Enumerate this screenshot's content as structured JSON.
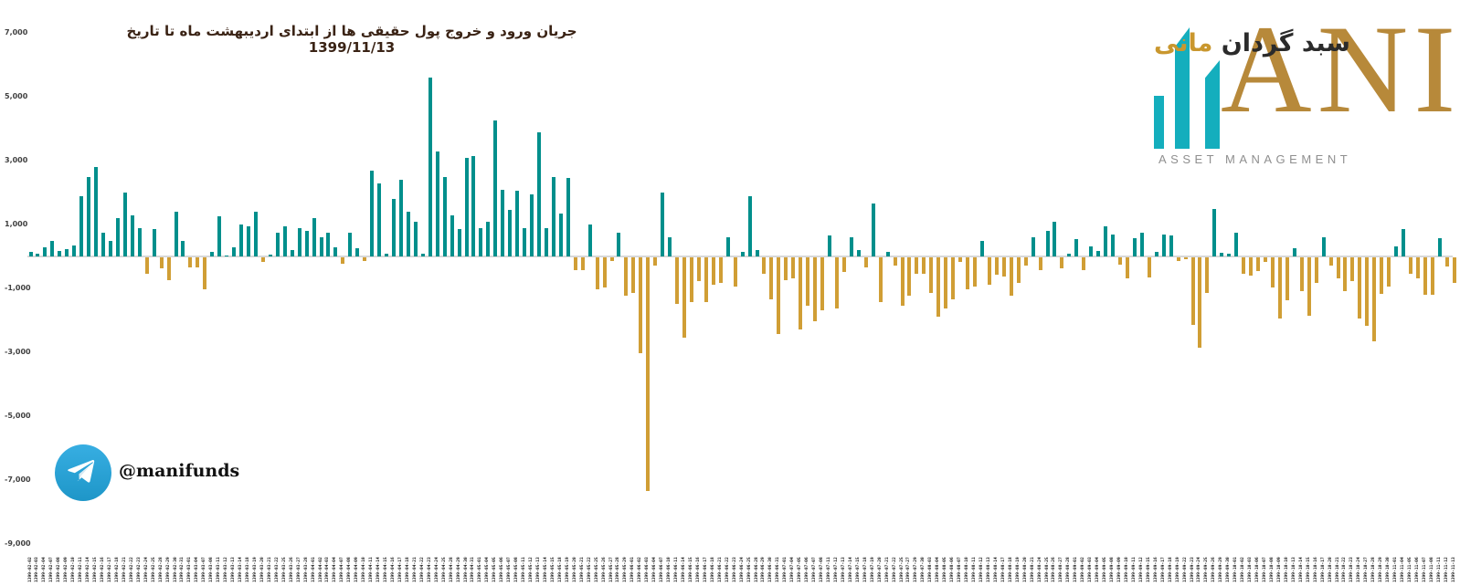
{
  "title": "جریان ورود و خروج پول حقیقی ها از ابتدای اردیبهشت ماه تا تاریخ 1399/11/13",
  "logo": {
    "brand_fa_dark": "سبد گردان",
    "brand_fa_gold": "مانی",
    "brand_en": "ANI",
    "subtitle": "ASSET MANAGEMENT",
    "bars_color": "#14aebd",
    "gold_color": "#b7893a"
  },
  "telegram": {
    "handle": "@manifunds"
  },
  "chart_data": {
    "type": "bar",
    "title": "جریان ورود و خروج پول حقیقی ها از ابتدای اردیبهشت ماه تا تاریخ 1399/11/13",
    "xlabel": "",
    "ylabel": "",
    "ylim": [
      -9000,
      7000
    ],
    "grid": false,
    "legend_position": "none",
    "positive_color": "#008f8c",
    "negative_color": "#d09e35",
    "y_ticks": [
      "7,000",
      "5,000",
      "3,000",
      "1,000",
      "-1,000",
      "-3,000",
      "-5,000",
      "-7,000",
      "-9,000"
    ],
    "y_tick_values": [
      7000,
      5000,
      3000,
      1000,
      -1000,
      -3000,
      -5000,
      -7000,
      -9000
    ],
    "x": [
      "1399-02-02",
      "1399-02-03",
      "1399-02-04",
      "1399-02-07",
      "1399-02-08",
      "1399-02-09",
      "1399-02-10",
      "1399-02-11",
      "1399-02-14",
      "1399-02-15",
      "1399-02-16",
      "1399-02-17",
      "1399-02-18",
      "1399-02-21",
      "1399-02-22",
      "1399-02-23",
      "1399-02-24",
      "1399-02-25",
      "1399-02-28",
      "1399-02-29",
      "1399-02-30",
      "1399-02-31",
      "1399-03-01",
      "1399-03-04",
      "1399-03-07",
      "1399-03-08",
      "1399-03-11",
      "1399-03-12",
      "1399-03-13",
      "1399-03-14",
      "1399-03-18",
      "1399-03-19",
      "1399-03-20",
      "1399-03-21",
      "1399-03-22",
      "1399-03-25",
      "1399-03-26",
      "1399-03-27",
      "1399-03-28",
      "1399-04-01",
      "1399-04-02",
      "1399-04-03",
      "1399-04-04",
      "1399-04-07",
      "1399-04-08",
      "1399-04-09",
      "1399-04-10",
      "1399-04-11",
      "1399-04-14",
      "1399-04-15",
      "1399-04-16",
      "1399-04-17",
      "1399-04-18",
      "1399-04-21",
      "1399-04-22",
      "1399-04-23",
      "1399-04-24",
      "1399-04-25",
      "1399-04-28",
      "1399-04-29",
      "1399-04-30",
      "1399-04-31",
      "1399-05-01",
      "1399-05-04",
      "1399-05-05",
      "1399-05-06",
      "1399-05-07",
      "1399-05-08",
      "1399-05-11",
      "1399-05-12",
      "1399-05-13",
      "1399-05-14",
      "1399-05-15",
      "1399-05-18",
      "1399-05-19",
      "1399-05-20",
      "1399-05-21",
      "1399-05-22",
      "1399-05-25",
      "1399-05-26",
      "1399-05-27",
      "1399-05-28",
      "1399-05-29",
      "1399-06-01",
      "1399-06-02",
      "1399-06-03",
      "1399-06-04",
      "1399-06-07",
      "1399-06-10",
      "1399-06-11",
      "1399-06-14",
      "1399-06-15",
      "1399-06-16",
      "1399-06-17",
      "1399-06-18",
      "1399-06-21",
      "1399-06-22",
      "1399-06-23",
      "1399-06-24",
      "1399-06-25",
      "1399-06-28",
      "1399-06-29",
      "1399-06-30",
      "1399-06-31",
      "1399-07-01",
      "1399-07-04",
      "1399-07-05",
      "1399-07-06",
      "1399-07-07",
      "1399-07-08",
      "1399-07-11",
      "1399-07-12",
      "1399-07-13",
      "1399-07-14",
      "1399-07-15",
      "1399-07-18",
      "1399-07-19",
      "1399-07-20",
      "1399-07-21",
      "1399-07-22",
      "1399-07-25",
      "1399-07-27",
      "1399-07-29",
      "1399-07-30",
      "1399-08-03",
      "1399-08-04",
      "1399-08-05",
      "1399-08-06",
      "1399-08-07",
      "1399-08-10",
      "1399-08-11",
      "1399-08-12",
      "1399-08-13",
      "1399-08-14",
      "1399-08-17",
      "1399-08-18",
      "1399-08-19",
      "1399-08-20",
      "1399-08-21",
      "1399-08-24",
      "1399-08-25",
      "1399-08-26",
      "1399-08-27",
      "1399-08-28",
      "1399-09-01",
      "1399-09-02",
      "1399-09-03",
      "1399-09-04",
      "1399-09-05",
      "1399-09-08",
      "1399-09-09",
      "1399-09-10",
      "1399-09-11",
      "1399-09-12",
      "1399-09-15",
      "1399-09-16",
      "1399-09-17",
      "1399-09-18",
      "1399-09-19",
      "1399-09-22",
      "1399-09-23",
      "1399-09-24",
      "1399-09-25",
      "1399-09-26",
      "1399-09-29",
      "1399-09-30",
      "1399-10-01",
      "1399-10-02",
      "1399-10-03",
      "1399-10-06",
      "1399-10-07",
      "1399-10-08",
      "1399-10-09",
      "1399-10-10",
      "1399-10-13",
      "1399-10-14",
      "1399-10-15",
      "1399-10-16",
      "1399-10-17",
      "1399-10-20",
      "1399-10-21",
      "1399-10-22",
      "1399-10-23",
      "1399-10-24",
      "1399-10-27",
      "1399-10-28",
      "1399-10-29",
      "1399-10-30",
      "1399-11-01",
      "1399-11-04",
      "1399-11-05",
      "1399-11-06",
      "1399-11-07",
      "1399-11-08",
      "1399-11-11",
      "1399-11-12",
      "1399-11-13"
    ],
    "values": [
      150,
      100,
      300,
      500,
      170,
      240,
      330,
      1900,
      2500,
      2800,
      750,
      500,
      1200,
      2000,
      1300,
      900,
      -500,
      850,
      -350,
      -700,
      1400,
      500,
      -300,
      -300,
      -1000,
      150,
      1250,
      30,
      300,
      1000,
      950,
      1400,
      -150,
      50,
      750,
      950,
      200,
      900,
      800,
      1200,
      600,
      750,
      300,
      -200,
      750,
      250,
      -100,
      2700,
      2300,
      100,
      1800,
      2400,
      1400,
      1100,
      100,
      5600,
      3300,
      2500,
      1300,
      850,
      3100,
      3150,
      900,
      1100,
      4250,
      2100,
      1450,
      2050,
      900,
      1950,
      3900,
      900,
      2500,
      1350,
      2450,
      -400,
      -400,
      1000,
      -1000,
      -950,
      -100,
      750,
      -1200,
      -1100,
      -3000,
      -7300,
      -250,
      2000,
      600,
      -1450,
      -2500,
      -1400,
      -750,
      -1400,
      -850,
      -800,
      600,
      -900,
      150,
      1900,
      200,
      -500,
      -1300,
      -2400,
      -700,
      -650,
      -2250,
      -1500,
      -2000,
      -1650,
      650,
      -1600,
      -450,
      600,
      200,
      -300,
      1650,
      -1400,
      150,
      -250,
      -1500,
      -1200,
      -500,
      -500,
      -1100,
      -1850,
      -1600,
      -1300,
      -150,
      -1000,
      -900,
      500,
      -850,
      -550,
      -600,
      -1200,
      -800,
      -250,
      600,
      -400,
      800,
      1100,
      -330,
      100,
      550,
      -400,
      315,
      170,
      950,
      680,
      -240,
      -665,
      580,
      745,
      -620,
      145,
      680,
      650,
      -115,
      -60,
      -2100,
      -2830,
      -1100,
      1475,
      115,
      80,
      750,
      -520,
      -570,
      -430,
      -145,
      -950,
      -1900,
      -1350,
      250,
      -1050,
      -1830,
      -800,
      600,
      -250,
      -660,
      -1065,
      -730,
      -1900,
      -2140,
      -2620,
      -1140,
      -920,
      315,
      865,
      -520,
      -660,
      -1160,
      -1160,
      570,
      -280,
      -810
    ]
  }
}
